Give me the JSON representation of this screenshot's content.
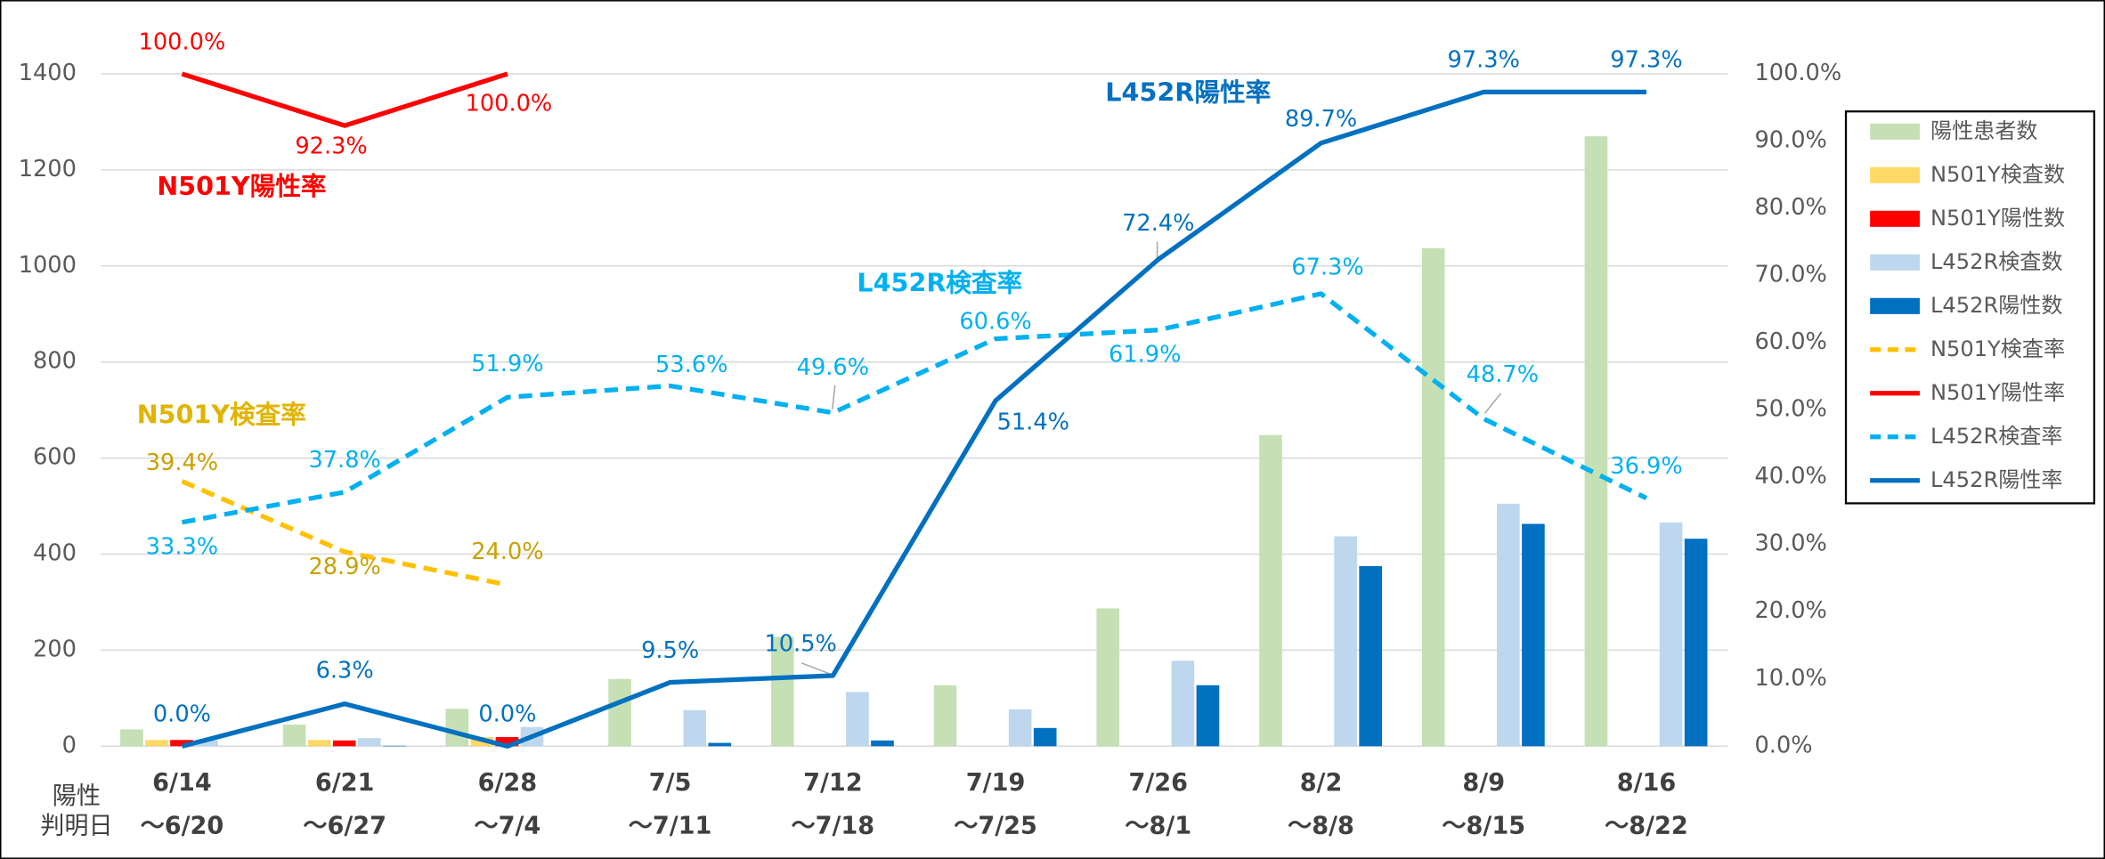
{
  "chart_data": {
    "type": "bar",
    "categories": [
      "6/14",
      "6/21",
      "6/28",
      "7/5",
      "7/12",
      "7/19",
      "7/26",
      "8/2",
      "8/9",
      "8/16"
    ],
    "category_sublabels": [
      "～6/20",
      "～6/27",
      "～7/4",
      "～7/11",
      "～7/18",
      "～7/25",
      "～8/1",
      "～8/8",
      "～8/15",
      "～8/22"
    ],
    "xlabel_lines": [
      "陽性",
      "判明日"
    ],
    "ylim": [
      0,
      1400
    ],
    "yticks": [
      0,
      200,
      400,
      600,
      800,
      1000,
      1200,
      1400
    ],
    "y2lim": [
      0,
      100
    ],
    "y2ticks": [
      {
        "value": 0,
        "label": "0.0%"
      },
      {
        "value": 10,
        "label": "10.0%"
      },
      {
        "value": 20,
        "label": "20.0%"
      },
      {
        "value": 30,
        "label": "30.0%"
      },
      {
        "value": 40,
        "label": "40.0%"
      },
      {
        "value": 50,
        "label": "50.0%"
      },
      {
        "value": 60,
        "label": "60.0%"
      },
      {
        "value": 70,
        "label": "70.0%"
      },
      {
        "value": 80,
        "label": "80.0%"
      },
      {
        "value": 90,
        "label": "90.0%"
      },
      {
        "value": 100,
        "label": "100.0%"
      }
    ],
    "grid": true,
    "legend": "right",
    "series": [
      {
        "name": "陽性患者数",
        "type": "bar",
        "color": "#c5e0b4",
        "values": [
          35,
          45,
          78,
          140,
          228,
          127,
          287,
          648,
          1037,
          1270
        ]
      },
      {
        "name": "N501Y検査数",
        "type": "bar",
        "color": "#ffd966",
        "values": [
          13,
          13,
          19,
          null,
          null,
          null,
          null,
          null,
          null,
          null
        ]
      },
      {
        "name": "N501Y陽性数",
        "type": "bar",
        "color": "#ff0000",
        "values": [
          13,
          12,
          19,
          null,
          null,
          null,
          null,
          null,
          null,
          null
        ]
      },
      {
        "name": "L452R検査数",
        "type": "bar",
        "color": "#bdd7ee",
        "values": [
          12,
          17,
          40,
          75,
          113,
          77,
          178,
          437,
          505,
          466
        ]
      },
      {
        "name": "L452R陽性数",
        "type": "bar",
        "color": "#0070c0",
        "values": [
          0,
          1,
          0,
          7,
          12,
          38,
          127,
          375,
          463,
          432
        ]
      },
      {
        "name": "N501Y検査率",
        "type": "line",
        "dash": true,
        "axis": "y2",
        "color": "#ffc000",
        "label_color": "#c9a000",
        "values": [
          39.4,
          28.9,
          24.0,
          null,
          null,
          null,
          null,
          null,
          null,
          null
        ],
        "value_labels": [
          "39.4%",
          "28.9%",
          "24.0%",
          null,
          null,
          null,
          null,
          null,
          null,
          null
        ]
      },
      {
        "name": "N501Y陽性率",
        "type": "line",
        "dash": false,
        "axis": "y2",
        "color": "#ff0000",
        "label_color": "#ff0000",
        "values": [
          100.0,
          92.3,
          100.0,
          null,
          null,
          null,
          null,
          null,
          null,
          null
        ],
        "value_labels": [
          "100.0%",
          "92.3%",
          "100.0%",
          null,
          null,
          null,
          null,
          null,
          null,
          null
        ]
      },
      {
        "name": "L452R検査率",
        "type": "line",
        "dash": true,
        "axis": "y2",
        "color": "#00b0f0",
        "label_color": "#00b0f0",
        "values": [
          33.3,
          37.8,
          51.9,
          53.6,
          49.6,
          60.6,
          61.9,
          67.3,
          48.7,
          36.9
        ],
        "value_labels": [
          "33.3%",
          "37.8%",
          "51.9%",
          "53.6%",
          "49.6%",
          "60.6%",
          "61.9%",
          "67.3%",
          "48.7%",
          "36.9%"
        ]
      },
      {
        "name": "L452R陽性率",
        "type": "line",
        "dash": false,
        "axis": "y2",
        "color": "#0070c0",
        "label_color": "#0070c0",
        "values": [
          0.0,
          6.3,
          0.0,
          9.5,
          10.5,
          51.4,
          72.4,
          89.7,
          97.3,
          97.3
        ],
        "value_labels": [
          "0.0%",
          "6.3%",
          "0.0%",
          "9.5%",
          "10.5%",
          "51.4%",
          "72.4%",
          "89.7%",
          "97.3%",
          "97.3%"
        ]
      }
    ]
  }
}
